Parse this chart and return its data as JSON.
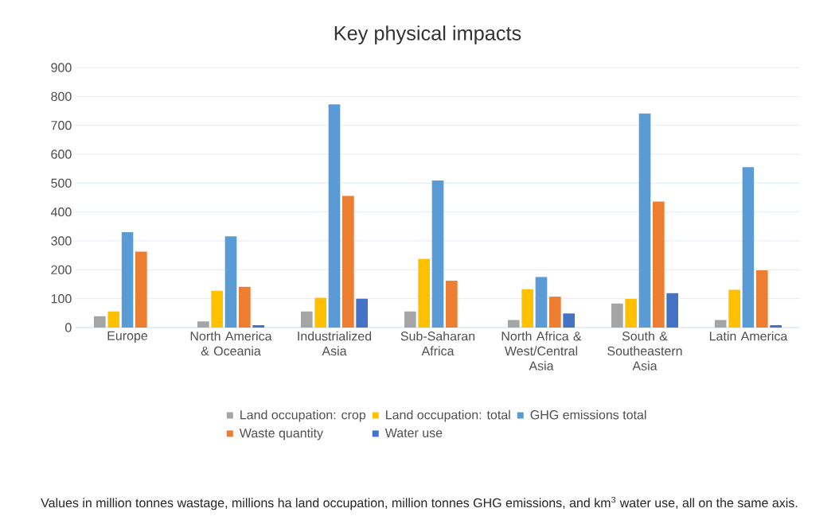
{
  "chart_data": {
    "type": "bar",
    "title": "Key physical impacts",
    "categories": [
      "Europe",
      "North America & Oceania",
      "Industrialized Asia",
      "Sub-Saharan Africa",
      "North Africa & West/Central Asia",
      "South & Southeastern Asia",
      "Latin America"
    ],
    "series": [
      {
        "name": "Land occupation: crop",
        "color": "#a5a5a5",
        "values": [
          39,
          21,
          56,
          56,
          26,
          84,
          26
        ]
      },
      {
        "name": "Land occupation: total",
        "color": "#ffc000",
        "values": [
          56,
          127,
          103,
          238,
          133,
          99,
          131
        ]
      },
      {
        "name": "GHG emissions total",
        "color": "#5b9bd5",
        "values": [
          330,
          316,
          773,
          509,
          175,
          741,
          555
        ]
      },
      {
        "name": "Waste quantity",
        "color": "#ed7d31",
        "values": [
          263,
          141,
          456,
          162,
          107,
          436,
          198
        ]
      },
      {
        "name": "Water use",
        "color": "#4472c4",
        "values": [
          0,
          8,
          100,
          0,
          49,
          119,
          8
        ]
      }
    ],
    "ylim": [
      0,
      900
    ],
    "yticks": [
      0,
      100,
      200,
      300,
      400,
      500,
      600,
      700,
      800,
      900
    ],
    "grid": "y",
    "legend": "bottom",
    "annotations": [
      "Values in million tonnes wastage, millions ha land occupation, million tonnes GHG emissions, and km$^{3}$ water use, all on the same axis."
    ]
  }
}
